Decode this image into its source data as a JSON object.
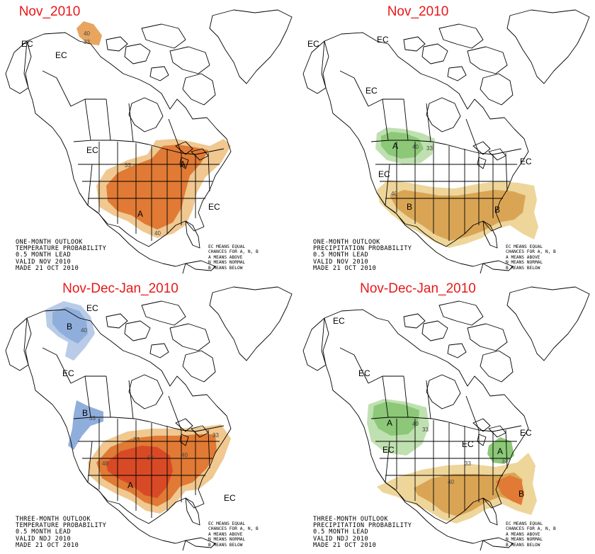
{
  "panels": [
    {
      "title": "Nov_2010",
      "info": [
        "ONE-MONTH OUTLOOK",
        "TEMPERATURE PROBABILITY",
        "0.5 MONTH LEAD",
        "VALID NOV 2010",
        "MADE 21 OCT 2010"
      ],
      "labels": {
        "ec1": "EC",
        "ec2": "EC",
        "ec3": "EC",
        "ec4": "EC",
        "a1": "A",
        "a2": "A",
        "n40a": "40",
        "n33a": "33",
        "n33b": "33",
        "n40b": "40"
      }
    },
    {
      "title": "Nov_2010",
      "info": [
        "ONE-MONTH OUTLOOK",
        "PRECIPITATION PROBABILITY",
        "0.5 MONTH LEAD",
        "VALID NOV 2010",
        "MADE 21 OCT 2010"
      ],
      "labels": {
        "ec1": "EC",
        "ec2": "EC",
        "ec3": "EC",
        "ec4": "EC",
        "ec5": "EC",
        "a1": "A",
        "b1": "B",
        "b2": "B",
        "n40a": "40",
        "n33a": "33",
        "n40b": "40"
      }
    },
    {
      "title": "Nov-Dec-Jan_2010",
      "info": [
        "THREE-MONTH OUTLOOK",
        "TEMPERATURE PROBABILITY",
        "0.5 MONTH LEAD",
        "VALID NDJ 2010",
        "MADE 21 OCT 2010"
      ],
      "labels": {
        "ec1": "EC",
        "ec2": "EC",
        "ec3": "EC",
        "b1": "B",
        "b2": "B",
        "a1": "A",
        "n40a": "40",
        "n33a": "33",
        "n40b": "40",
        "n50": "50",
        "n33b": "33",
        "n40c": "40",
        "n33c": "33"
      }
    },
    {
      "title": "Nov-Dec-Jan_2010",
      "info": [
        "THREE-MONTH OUTLOOK",
        "PRECIPITATION PROBABILITY",
        "0.5 MONTH LEAD",
        "VALID NDJ 2010",
        "MADE 21 OCT 2010"
      ],
      "labels": {
        "ec1": "EC",
        "ec2": "EC",
        "ec3": "EC",
        "ec4": "EC",
        "ec5": "EC",
        "a1": "A",
        "a2": "A",
        "b1": "B",
        "n40a": "40",
        "n33a": "33",
        "n33b": "33",
        "n40b": "40",
        "n33c": "33"
      }
    }
  ],
  "legend": [
    "EC MEANS EQUAL",
    "CHANCES FOR A, N, B",
    "A MEANS ABOVE",
    "N MEANS NORMAL",
    "B MEANS BELOW"
  ],
  "colors": {
    "title": "#e81818",
    "above_light": "#f0c890",
    "above_mid": "#e8a560",
    "above_dark": "#e07a35",
    "above_deep": "#d84a25",
    "below_light": "#b8cce8",
    "below_mid": "#90aedb",
    "wet_light": "#bfe0b0",
    "wet_mid": "#8cc878",
    "dry_light": "#eed59a",
    "dry_mid": "#d9a555"
  }
}
